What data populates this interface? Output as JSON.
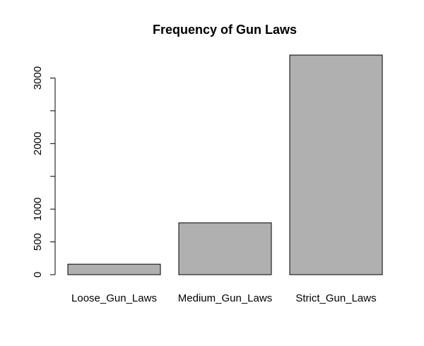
{
  "chart_data": {
    "type": "bar",
    "title": "Frequency of Gun Laws",
    "xlabel": "",
    "ylabel": "",
    "categories": [
      "Loose_Gun_Laws",
      "Medium_Gun_Laws",
      "Strict_Gun_Laws"
    ],
    "values": [
      160,
      790,
      3350
    ],
    "ylim": [
      0,
      3350
    ],
    "yticks": [
      0,
      500,
      1000,
      1500,
      2000,
      2500,
      3000
    ],
    "ytick_labels": [
      "0",
      "500",
      "1000",
      "",
      "2000",
      "",
      "3000"
    ],
    "grid": false,
    "legend": "none",
    "bar_color": "#b0b0b0",
    "bar_border_color": "#000000"
  }
}
